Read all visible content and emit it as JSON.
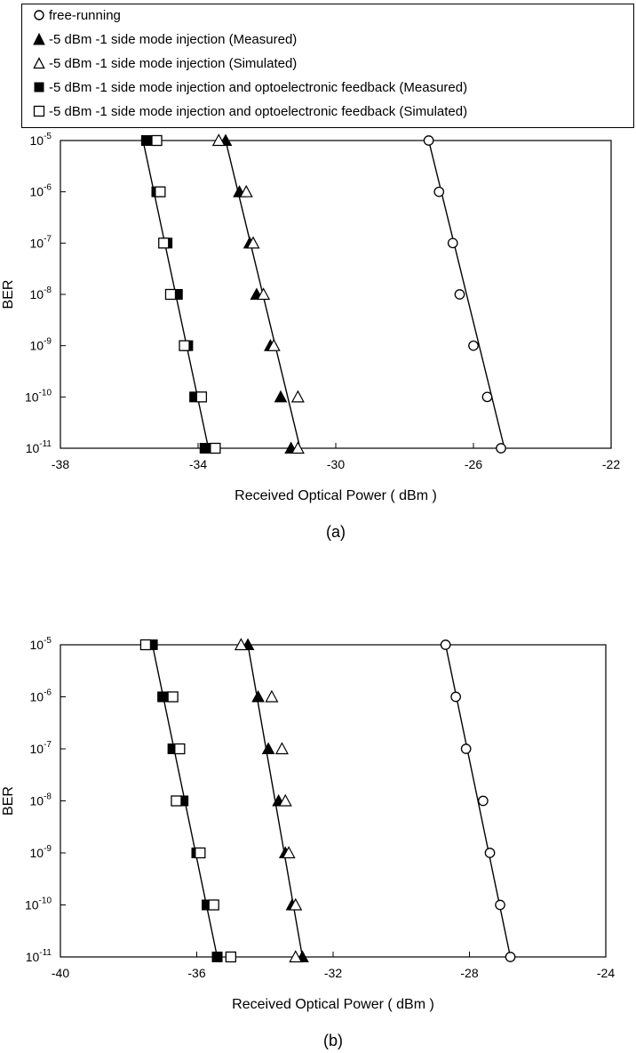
{
  "legend": [
    {
      "marker": "open-circle",
      "label": "free-running"
    },
    {
      "marker": "filled-triangle",
      "label": "-5 dBm -1 side mode injection (Measured)"
    },
    {
      "marker": "open-triangle",
      "label": "-5 dBm -1 side mode injection (Simulated)"
    },
    {
      "marker": "filled-square",
      "label": "-5 dBm -1 side mode injection and optoelectronic feedback (Measured)"
    },
    {
      "marker": "open-square",
      "label": "-5 dBm -1 side mode injection and optoelectronic feedback (Simulated)"
    }
  ],
  "chart_data": [
    {
      "type": "scatter",
      "panel_label": "(a)",
      "xlabel": "Received Optical Power ( dBm )",
      "ylabel": "BER",
      "xlim": [
        -38,
        -22
      ],
      "xticks": [
        -38,
        -34,
        -30,
        -26,
        -22
      ],
      "ylim_exp": [
        -11,
        -5
      ],
      "y_scale": "log",
      "yticks_exp": [
        -5,
        -6,
        -7,
        -8,
        -9,
        -10,
        -11
      ],
      "series": [
        {
          "name": "free-running",
          "marker": "open-circle",
          "x": [
            -27.3,
            -27.0,
            -26.6,
            -26.4,
            -26.0,
            -25.6,
            -25.2
          ],
          "y_exp": [
            -5,
            -6,
            -7,
            -8,
            -9,
            -10,
            -11
          ]
        },
        {
          "name": "-5 dBm -1 side mode injection (Measured)",
          "marker": "filled-triangle",
          "x": [
            -33.2,
            -32.8,
            -32.5,
            -32.3,
            -31.9,
            -31.6,
            -31.3
          ],
          "y_exp": [
            -5,
            -6,
            -7,
            -8,
            -9,
            -10,
            -11
          ]
        },
        {
          "name": "-5 dBm -1 side mode injection (Simulated)",
          "marker": "open-triangle",
          "x": [
            -33.4,
            -32.6,
            -32.4,
            -32.1,
            -31.8,
            -31.1,
            -31.1
          ],
          "y_exp": [
            -5,
            -6,
            -7,
            -8,
            -9,
            -10,
            -11
          ]
        },
        {
          "name": "-5 dBm -1 side mode injection and optoelectronic feedback (Measured)",
          "marker": "filled-square",
          "x": [
            -35.5,
            -35.2,
            -34.9,
            -34.6,
            -34.3,
            -34.1,
            -33.8
          ],
          "y_exp": [
            -5,
            -6,
            -7,
            -8,
            -9,
            -10,
            -11
          ]
        },
        {
          "name": "-5 dBm -1 side mode injection and optoelectronic feedback (Simulated)",
          "marker": "open-square",
          "x": [
            -35.2,
            -35.1,
            -35.0,
            -34.8,
            -34.4,
            -33.9,
            -33.5
          ],
          "y_exp": [
            -5,
            -6,
            -7,
            -8,
            -9,
            -10,
            -11
          ]
        }
      ],
      "fit_lines": [
        {
          "x": [
            -27.3,
            -25.1
          ],
          "y_exp": [
            -5,
            -11
          ]
        },
        {
          "x": [
            -33.2,
            -31.0
          ],
          "y_exp": [
            -5,
            -11.1
          ]
        },
        {
          "x": [
            -35.6,
            -33.7
          ],
          "y_exp": [
            -5,
            -11
          ]
        }
      ]
    },
    {
      "type": "scatter",
      "panel_label": "(b)",
      "xlabel": "Received Optical Power ( dBm )",
      "ylabel": "BER",
      "xlim": [
        -40,
        -24
      ],
      "xticks": [
        -40,
        -36,
        -32,
        -28,
        -24
      ],
      "ylim_exp": [
        -11,
        -5
      ],
      "y_scale": "log",
      "yticks_exp": [
        -5,
        -6,
        -7,
        -8,
        -9,
        -10,
        -11
      ],
      "series": [
        {
          "name": "free-running",
          "marker": "open-circle",
          "x": [
            -28.7,
            -28.4,
            -28.1,
            -27.6,
            -27.4,
            -27.1,
            -26.8
          ],
          "y_exp": [
            -5,
            -6,
            -7,
            -8,
            -9,
            -10,
            -11
          ]
        },
        {
          "name": "-5 dBm -1 side mode injection (Measured)",
          "marker": "filled-triangle",
          "x": [
            -34.5,
            -34.2,
            -33.9,
            -33.6,
            -33.4,
            -33.2,
            -32.9
          ],
          "y_exp": [
            -5,
            -6,
            -7,
            -8,
            -9,
            -10,
            -11
          ]
        },
        {
          "name": "-5 dBm -1 side mode injection (Simulated)",
          "marker": "open-triangle",
          "x": [
            -34.7,
            -33.8,
            -33.5,
            -33.4,
            -33.3,
            -33.1,
            -33.1
          ],
          "y_exp": [
            -5,
            -6,
            -7,
            -8,
            -9,
            -10,
            -11
          ]
        },
        {
          "name": "-5 dBm -1 side mode injection and optoelectronic feedback (Measured)",
          "marker": "filled-square",
          "x": [
            -37.3,
            -37.0,
            -36.7,
            -36.4,
            -36.0,
            -35.7,
            -35.4
          ],
          "y_exp": [
            -5,
            -6,
            -7,
            -8,
            -9,
            -10,
            -11
          ]
        },
        {
          "name": "-5 dBm -1 side mode injection and optoelectronic feedback (Simulated)",
          "marker": "open-square",
          "x": [
            -37.5,
            -36.7,
            -36.5,
            -36.6,
            -35.9,
            -35.5,
            -35.0
          ],
          "y_exp": [
            -5,
            -6,
            -7,
            -8,
            -9,
            -10,
            -11
          ]
        }
      ],
      "fit_lines": [
        {
          "x": [
            -28.7,
            -26.8
          ],
          "y_exp": [
            -5,
            -11
          ]
        },
        {
          "x": [
            -34.5,
            -32.9
          ],
          "y_exp": [
            -5,
            -11
          ]
        },
        {
          "x": [
            -37.3,
            -35.4
          ],
          "y_exp": [
            -5,
            -11
          ]
        }
      ]
    }
  ]
}
